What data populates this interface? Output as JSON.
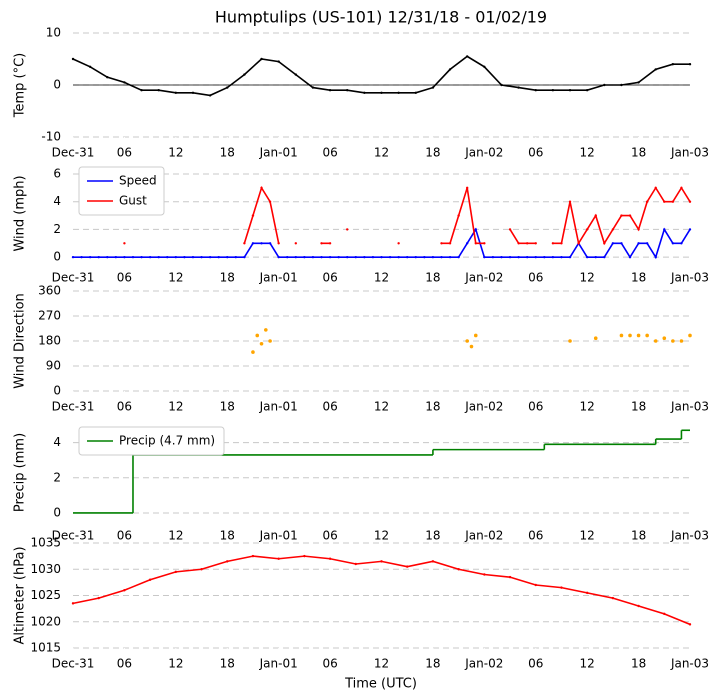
{
  "chart_data": [
    {
      "type": "line",
      "title": "Humptulips (US-101) 12/31/18 - 01/02/19",
      "ylabel": "Temp (°C)",
      "x": [
        0,
        2,
        4,
        6,
        8,
        10,
        12,
        14,
        16,
        18,
        20,
        22,
        24,
        26,
        28,
        30,
        32,
        34,
        36,
        38,
        40,
        42,
        44,
        46,
        48,
        50,
        52,
        54,
        56,
        58,
        60,
        62,
        64,
        66,
        68,
        70,
        72
      ],
      "series": [
        {
          "color": "#000000",
          "values": [
            5,
            3.5,
            1.5,
            0.5,
            -1,
            -1,
            -1.5,
            -1.5,
            -2,
            -0.5,
            2,
            5,
            4.5,
            2,
            -0.5,
            -1,
            -1,
            -1.5,
            -1.5,
            -1.5,
            -1.5,
            -0.5,
            3,
            5.5,
            3.5,
            0,
            -0.5,
            -1,
            -1,
            -1,
            -1,
            0,
            0,
            0.5,
            3,
            4,
            4
          ]
        }
      ],
      "xlim": [
        0,
        72
      ],
      "ylim": [
        -10,
        10
      ],
      "yticks": [
        -10,
        0,
        10
      ],
      "grid": true,
      "zero_line": true,
      "xticks": [
        {
          "value": 0,
          "label": "Dec-31"
        },
        {
          "value": 6,
          "label": "06"
        },
        {
          "value": 12,
          "label": "12"
        },
        {
          "value": 18,
          "label": "18"
        },
        {
          "value": 24,
          "label": "Jan-01"
        },
        {
          "value": 30,
          "label": "06"
        },
        {
          "value": 36,
          "label": "12"
        },
        {
          "value": 42,
          "label": "18"
        },
        {
          "value": 48,
          "label": "Jan-02"
        },
        {
          "value": 54,
          "label": "06"
        },
        {
          "value": 60,
          "label": "12"
        },
        {
          "value": 66,
          "label": "18"
        },
        {
          "value": 72,
          "label": "Jan-03"
        }
      ]
    },
    {
      "type": "line",
      "ylabel": "Wind (mph)",
      "legend": "upper left",
      "x": [
        0,
        1,
        2,
        3,
        4,
        5,
        6,
        7,
        8,
        9,
        10,
        11,
        12,
        13,
        14,
        15,
        16,
        17,
        18,
        19,
        20,
        21,
        22,
        23,
        24,
        25,
        26,
        27,
        28,
        29,
        30,
        31,
        32,
        33,
        34,
        35,
        36,
        37,
        38,
        39,
        40,
        41,
        42,
        43,
        44,
        45,
        46,
        47,
        48,
        49,
        50,
        51,
        52,
        53,
        54,
        55,
        56,
        57,
        58,
        59,
        60,
        61,
        62,
        63,
        64,
        65,
        66,
        67,
        68,
        69,
        70,
        71,
        72
      ],
      "series": [
        {
          "name": "Speed",
          "color": "#0000ff",
          "values": [
            0,
            0,
            0,
            0,
            0,
            0,
            0,
            0,
            0,
            0,
            0,
            0,
            0,
            0,
            0,
            0,
            0,
            0,
            0,
            0,
            0,
            1,
            1,
            1,
            0,
            0,
            0,
            0,
            0,
            0,
            0,
            0,
            0,
            0,
            0,
            0,
            0,
            0,
            0,
            0,
            0,
            0,
            0,
            0,
            0,
            0,
            1,
            2,
            0,
            0,
            0,
            0,
            0,
            0,
            0,
            0,
            0,
            0,
            0,
            1,
            0,
            0,
            0,
            1,
            1,
            0,
            1,
            1,
            0,
            2,
            1,
            1,
            2
          ]
        },
        {
          "name": "Gust",
          "color": "#ff0000",
          "values": [
            null,
            null,
            null,
            null,
            null,
            null,
            1,
            null,
            null,
            null,
            null,
            null,
            null,
            null,
            null,
            null,
            null,
            null,
            null,
            null,
            1,
            3,
            5,
            4,
            1,
            null,
            1,
            null,
            null,
            1,
            1,
            null,
            2,
            null,
            null,
            null,
            null,
            null,
            1,
            null,
            null,
            null,
            null,
            1,
            1,
            3,
            5,
            1,
            1,
            null,
            null,
            2,
            1,
            1,
            1,
            null,
            1,
            1,
            4,
            1,
            2,
            3,
            1,
            2,
            3,
            3,
            2,
            4,
            5,
            4,
            4,
            5,
            4
          ]
        }
      ],
      "xlim": [
        0,
        72
      ],
      "ylim": [
        -0.35,
        6.65
      ],
      "yticks": [
        0,
        2,
        4,
        6
      ],
      "grid": true,
      "xticks": [
        {
          "value": 0,
          "label": "Dec-31"
        },
        {
          "value": 6,
          "label": "06"
        },
        {
          "value": 12,
          "label": "12"
        },
        {
          "value": 18,
          "label": "18"
        },
        {
          "value": 24,
          "label": "Jan-01"
        },
        {
          "value": 30,
          "label": "06"
        },
        {
          "value": 36,
          "label": "12"
        },
        {
          "value": 42,
          "label": "18"
        },
        {
          "value": 48,
          "label": "Jan-02"
        },
        {
          "value": 54,
          "label": "06"
        },
        {
          "value": 60,
          "label": "12"
        },
        {
          "value": 66,
          "label": "18"
        },
        {
          "value": 72,
          "label": "Jan-03"
        }
      ]
    },
    {
      "type": "scatter",
      "ylabel": "Wind Direction",
      "x": [
        21,
        21.5,
        22,
        22.5,
        23,
        46,
        46.5,
        47,
        58,
        61,
        64,
        65,
        66,
        67,
        68,
        69,
        70,
        71,
        72
      ],
      "series": [
        {
          "color": "#ffa500",
          "values": [
            140,
            200,
            170,
            220,
            180,
            180,
            160,
            200,
            180,
            190,
            200,
            200,
            200,
            200,
            180,
            190,
            180,
            180,
            200
          ]
        }
      ],
      "xlim": [
        0,
        72
      ],
      "ylim": [
        0,
        360
      ],
      "yticks": [
        0,
        90,
        180,
        270,
        360
      ],
      "grid": true,
      "xticks": [
        {
          "value": 0,
          "label": "Dec-31"
        },
        {
          "value": 6,
          "label": "06"
        },
        {
          "value": 12,
          "label": "12"
        },
        {
          "value": 18,
          "label": "18"
        },
        {
          "value": 24,
          "label": "Jan-01"
        },
        {
          "value": 30,
          "label": "06"
        },
        {
          "value": 36,
          "label": "12"
        },
        {
          "value": 42,
          "label": "18"
        },
        {
          "value": 48,
          "label": "Jan-02"
        },
        {
          "value": 54,
          "label": "06"
        },
        {
          "value": 60,
          "label": "12"
        },
        {
          "value": 66,
          "label": "18"
        },
        {
          "value": 72,
          "label": "Jan-03"
        }
      ]
    },
    {
      "type": "step",
      "ylabel": "Precip (mm)",
      "legend": "upper left",
      "x": [
        0,
        7,
        42,
        55,
        68,
        71,
        72
      ],
      "series": [
        {
          "name": "Precip (4.7 mm)",
          "color": "#008000",
          "values": [
            0,
            3.3,
            3.6,
            3.9,
            4.2,
            4.7,
            4.7
          ]
        }
      ],
      "xlim": [
        0,
        72
      ],
      "ylim": [
        -0.4,
        5.0
      ],
      "yticks": [
        0,
        2,
        4
      ],
      "grid": true,
      "xticks": [
        {
          "value": 0,
          "label": "Dec-31"
        },
        {
          "value": 6,
          "label": "06"
        },
        {
          "value": 12,
          "label": "12"
        },
        {
          "value": 18,
          "label": "18"
        },
        {
          "value": 24,
          "label": "Jan-01"
        },
        {
          "value": 30,
          "label": "06"
        },
        {
          "value": 36,
          "label": "12"
        },
        {
          "value": 42,
          "label": "18"
        },
        {
          "value": 48,
          "label": "Jan-02"
        },
        {
          "value": 54,
          "label": "06"
        },
        {
          "value": 60,
          "label": "12"
        },
        {
          "value": 66,
          "label": "18"
        },
        {
          "value": 72,
          "label": "Jan-03"
        }
      ]
    },
    {
      "type": "line",
      "ylabel": "Altimeter (hPa)",
      "xlabel": "Time (UTC)",
      "x": [
        0,
        3,
        6,
        9,
        12,
        15,
        18,
        21,
        24,
        27,
        30,
        33,
        36,
        39,
        42,
        45,
        48,
        51,
        54,
        57,
        60,
        63,
        66,
        69,
        72
      ],
      "series": [
        {
          "color": "#ff0000",
          "values": [
            1023.5,
            1024.5,
            1026,
            1028,
            1029.5,
            1030,
            1031.5,
            1032.5,
            1032,
            1032.5,
            1032,
            1031,
            1031.5,
            1030.5,
            1031.5,
            1030,
            1029,
            1028.5,
            1027,
            1026.5,
            1025.5,
            1024.5,
            1023,
            1021.5,
            1019.5
          ]
        }
      ],
      "xlim": [
        0,
        72
      ],
      "ylim": [
        1015,
        1035
      ],
      "yticks": [
        1015,
        1020,
        1025,
        1030,
        1035
      ],
      "grid": true,
      "xticks": [
        {
          "value": 0,
          "label": "Dec-31"
        },
        {
          "value": 6,
          "label": "06"
        },
        {
          "value": 12,
          "label": "12"
        },
        {
          "value": 18,
          "label": "18"
        },
        {
          "value": 24,
          "label": "Jan-01"
        },
        {
          "value": 30,
          "label": "06"
        },
        {
          "value": 36,
          "label": "12"
        },
        {
          "value": 42,
          "label": "18"
        },
        {
          "value": 48,
          "label": "Jan-02"
        },
        {
          "value": 54,
          "label": "06"
        },
        {
          "value": 60,
          "label": "12"
        },
        {
          "value": 66,
          "label": "18"
        },
        {
          "value": 72,
          "label": "Jan-03"
        }
      ]
    }
  ]
}
